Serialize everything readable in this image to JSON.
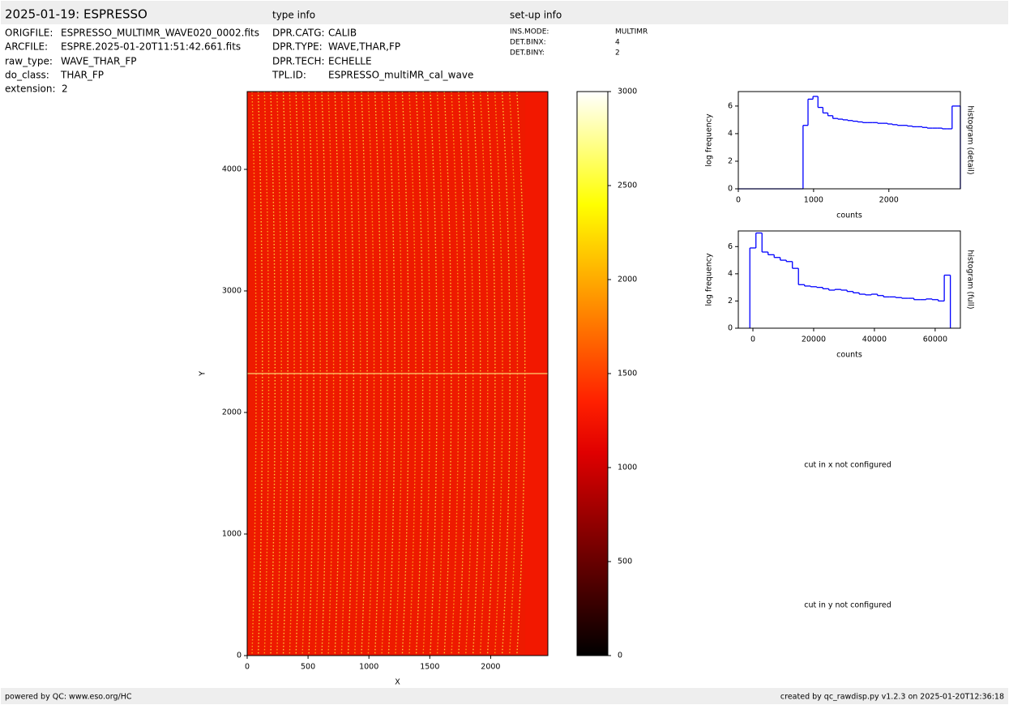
{
  "header": {
    "title": "2025-01-19: ESPRESSO",
    "type_info": "type info",
    "setup_info": "set-up info"
  },
  "file_info": [
    [
      "ORIGFILE:",
      "ESPRESSO_MULTIMR_WAVE020_0002.fits"
    ],
    [
      "ARCFILE:",
      "ESPRE.2025-01-20T11:51:42.661.fits"
    ],
    [
      "raw_type:",
      "WAVE_THAR_FP"
    ],
    [
      "do_class:",
      "THAR_FP"
    ],
    [
      "extension:",
      "2"
    ]
  ],
  "type_info": [
    [
      "DPR.CATG:",
      "CALIB"
    ],
    [
      "DPR.TYPE:",
      "WAVE,THAR,FP"
    ],
    [
      "DPR.TECH:",
      "ECHELLE"
    ],
    [
      "TPL.ID:",
      "ESPRESSO_multiMR_cal_wave"
    ]
  ],
  "setup_info": [
    [
      "INS.MODE:",
      "MULTIMR"
    ],
    [
      "DET.BINX:",
      "4"
    ],
    [
      "DET.BINY:",
      "2"
    ]
  ],
  "chart_data": [
    {
      "type": "image",
      "xlabel": "X",
      "ylabel": "Y",
      "xlim": [
        0,
        2470
      ],
      "ylim": [
        0,
        4640
      ],
      "xticks": [
        0,
        500,
        1000,
        1500,
        2000
      ],
      "yticks": [
        0,
        1000,
        2000,
        3000,
        4000
      ],
      "clim": [
        0,
        3000
      ],
      "cticks": [
        0,
        500,
        1000,
        1500,
        2000,
        2500,
        3000
      ]
    },
    {
      "type": "histogram",
      "xlabel": "counts",
      "ylabel": "log frequency",
      "side_label": "histogram (detail)",
      "color": "#0000ff",
      "bins": [
        0,
        860,
        926,
        992,
        1058,
        1124,
        1190,
        1256,
        1322,
        1388,
        1454,
        1520,
        1586,
        1652,
        1718,
        1784,
        1850,
        1916,
        1982,
        2048,
        2114,
        2180,
        2246,
        2312,
        2378,
        2444,
        2510,
        2576,
        2642,
        2708,
        2774,
        2840,
        2950
      ],
      "counts": [
        0,
        4.6,
        6.5,
        6.7,
        5.9,
        5.5,
        5.3,
        5.1,
        5.05,
        5.0,
        4.95,
        4.9,
        4.85,
        4.8,
        4.8,
        4.8,
        4.75,
        4.75,
        4.7,
        4.65,
        4.6,
        4.6,
        4.55,
        4.5,
        4.5,
        4.45,
        4.4,
        4.4,
        4.4,
        4.35,
        4.35,
        6.0
      ],
      "xlim": [
        0,
        2950
      ],
      "ylim": [
        0,
        7.05
      ],
      "xticks": [
        0,
        1000,
        2000
      ],
      "yticks": [
        0,
        2,
        4,
        6
      ]
    },
    {
      "type": "histogram",
      "xlabel": "counts",
      "ylabel": "log frequency",
      "side_label": "histogram (full)",
      "color": "#0000ff",
      "bins": [
        -1000,
        1000,
        3000,
        5000,
        7000,
        9000,
        11000,
        13000,
        15000,
        17000,
        19000,
        21000,
        23000,
        25000,
        27000,
        29000,
        31000,
        33000,
        35000,
        37000,
        39000,
        41000,
        43000,
        45000,
        47000,
        49000,
        51000,
        53000,
        55000,
        57000,
        59000,
        61000,
        63000,
        65000
      ],
      "counts": [
        5.9,
        7.0,
        5.6,
        5.4,
        5.2,
        5.0,
        4.9,
        4.4,
        3.2,
        3.1,
        3.05,
        3.0,
        2.9,
        2.8,
        2.85,
        2.8,
        2.7,
        2.6,
        2.5,
        2.45,
        2.5,
        2.4,
        2.3,
        2.3,
        2.25,
        2.2,
        2.2,
        2.1,
        2.1,
        2.15,
        2.1,
        2.0,
        3.9
      ],
      "xlim": [
        -4800,
        68300
      ],
      "ylim": [
        0,
        7.15
      ],
      "xticks": [
        0,
        20000,
        40000,
        60000
      ],
      "yticks": [
        0,
        2,
        4,
        6
      ]
    }
  ],
  "notes": [
    "cut in x not configured",
    "cut in y not configured"
  ],
  "footer": {
    "left": "powered by QC: www.eso.org/HC",
    "right": "created by qc_rawdisp.py v1.2.3 on 2025-01-20T12:36:18"
  }
}
